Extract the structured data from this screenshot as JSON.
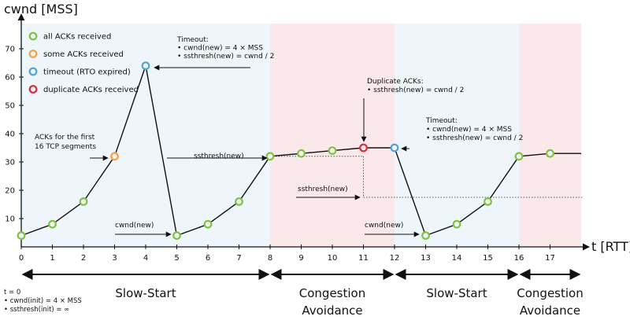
{
  "chart_data": {
    "type": "line",
    "ylabel": "cwnd [MSS]",
    "xlabel": "t [RTT]",
    "xlim": [
      0,
      18
    ],
    "ylim": [
      0,
      75
    ],
    "x_ticks": [
      0,
      1,
      2,
      3,
      4,
      5,
      6,
      7,
      8,
      9,
      10,
      11,
      12,
      13,
      14,
      15,
      16,
      17
    ],
    "y_ticks": [
      10,
      20,
      30,
      40,
      50,
      60,
      70
    ],
    "series": [
      {
        "x": [
          0,
          1,
          2,
          3,
          4,
          5,
          6,
          7,
          8,
          9,
          10,
          11,
          12,
          13,
          14,
          15,
          16,
          17,
          18
        ],
        "y": [
          4,
          8,
          16,
          32,
          64,
          4,
          8,
          16,
          32,
          33,
          34,
          35,
          35,
          4,
          8,
          16,
          32,
          33,
          33
        ]
      }
    ],
    "markers": [
      {
        "x": 0,
        "y": 4,
        "kind": "all"
      },
      {
        "x": 1,
        "y": 8,
        "kind": "all"
      },
      {
        "x": 2,
        "y": 16,
        "kind": "all"
      },
      {
        "x": 3,
        "y": 32,
        "kind": "some"
      },
      {
        "x": 4,
        "y": 64,
        "kind": "timeout"
      },
      {
        "x": 5,
        "y": 4,
        "kind": "all"
      },
      {
        "x": 6,
        "y": 8,
        "kind": "all"
      },
      {
        "x": 7,
        "y": 16,
        "kind": "all"
      },
      {
        "x": 8,
        "y": 32,
        "kind": "all"
      },
      {
        "x": 9,
        "y": 33,
        "kind": "all"
      },
      {
        "x": 10,
        "y": 34,
        "kind": "all"
      },
      {
        "x": 11,
        "y": 35,
        "kind": "dup"
      },
      {
        "x": 12,
        "y": 35,
        "kind": "timeout"
      },
      {
        "x": 13,
        "y": 4,
        "kind": "all"
      },
      {
        "x": 14,
        "y": 8,
        "kind": "all"
      },
      {
        "x": 15,
        "y": 16,
        "kind": "all"
      },
      {
        "x": 16,
        "y": 32,
        "kind": "all"
      },
      {
        "x": 17,
        "y": 33,
        "kind": "all"
      }
    ],
    "legend": [
      {
        "kind": "all",
        "label": "all ACKs received",
        "color": "#7dc242"
      },
      {
        "kind": "some",
        "label": "some ACKs received",
        "color": "#f5a04a"
      },
      {
        "kind": "timeout",
        "label": "timeout (RTO expired)",
        "color": "#4fa3d9"
      },
      {
        "kind": "dup",
        "label": "duplicate ACKs received",
        "color": "#d92b3a"
      }
    ],
    "legend_position": "top-left",
    "phases": [
      {
        "label": "Slow-Start",
        "from": 0,
        "to": 8,
        "bg": "#eef6fb"
      },
      {
        "label": "Congestion\nAvoidance",
        "from": 8,
        "to": 12,
        "bg": "#fbe8ea"
      },
      {
        "label": "Slow-Start",
        "from": 12,
        "to": 16,
        "bg": "#eef6fb"
      },
      {
        "label": "Congestion\nAvoidance",
        "from": 16,
        "to": 18,
        "bg": "#fbe8ea"
      }
    ],
    "ssthresh_lines": [
      {
        "y": 32,
        "from": 8,
        "to": 11
      },
      {
        "y": 17.5,
        "from": 11,
        "to": 18
      }
    ],
    "annotations": [
      {
        "lines": [
          "Timeout:",
          "• cwnd(new) = 4 × MSS",
          "• ssthresh(new) = cwnd / 2"
        ]
      },
      {
        "lines": [
          "Duplicate ACKs:",
          "• ssthresh(new) = cwnd / 2"
        ]
      },
      {
        "lines": [
          "Timeout:",
          "• cwnd(new) = 4 × MSS",
          "• ssthresh(new) = cwnd / 2"
        ]
      },
      {
        "lines": [
          "ACKs for the first",
          "16 TCP segments"
        ]
      },
      {
        "lines": [
          "ssthresh(new)"
        ]
      },
      {
        "lines": [
          "ssthresh(new)"
        ]
      },
      {
        "lines": [
          "cwnd(new)"
        ]
      },
      {
        "lines": [
          "cwnd(new)"
        ]
      }
    ],
    "initial_conditions": [
      "t = 0",
      "• cwnd(init) = 4 × MSS",
      "• ssthresh(init) = ∞"
    ]
  },
  "colors": {
    "line": "#111111",
    "axis": "#111111"
  }
}
